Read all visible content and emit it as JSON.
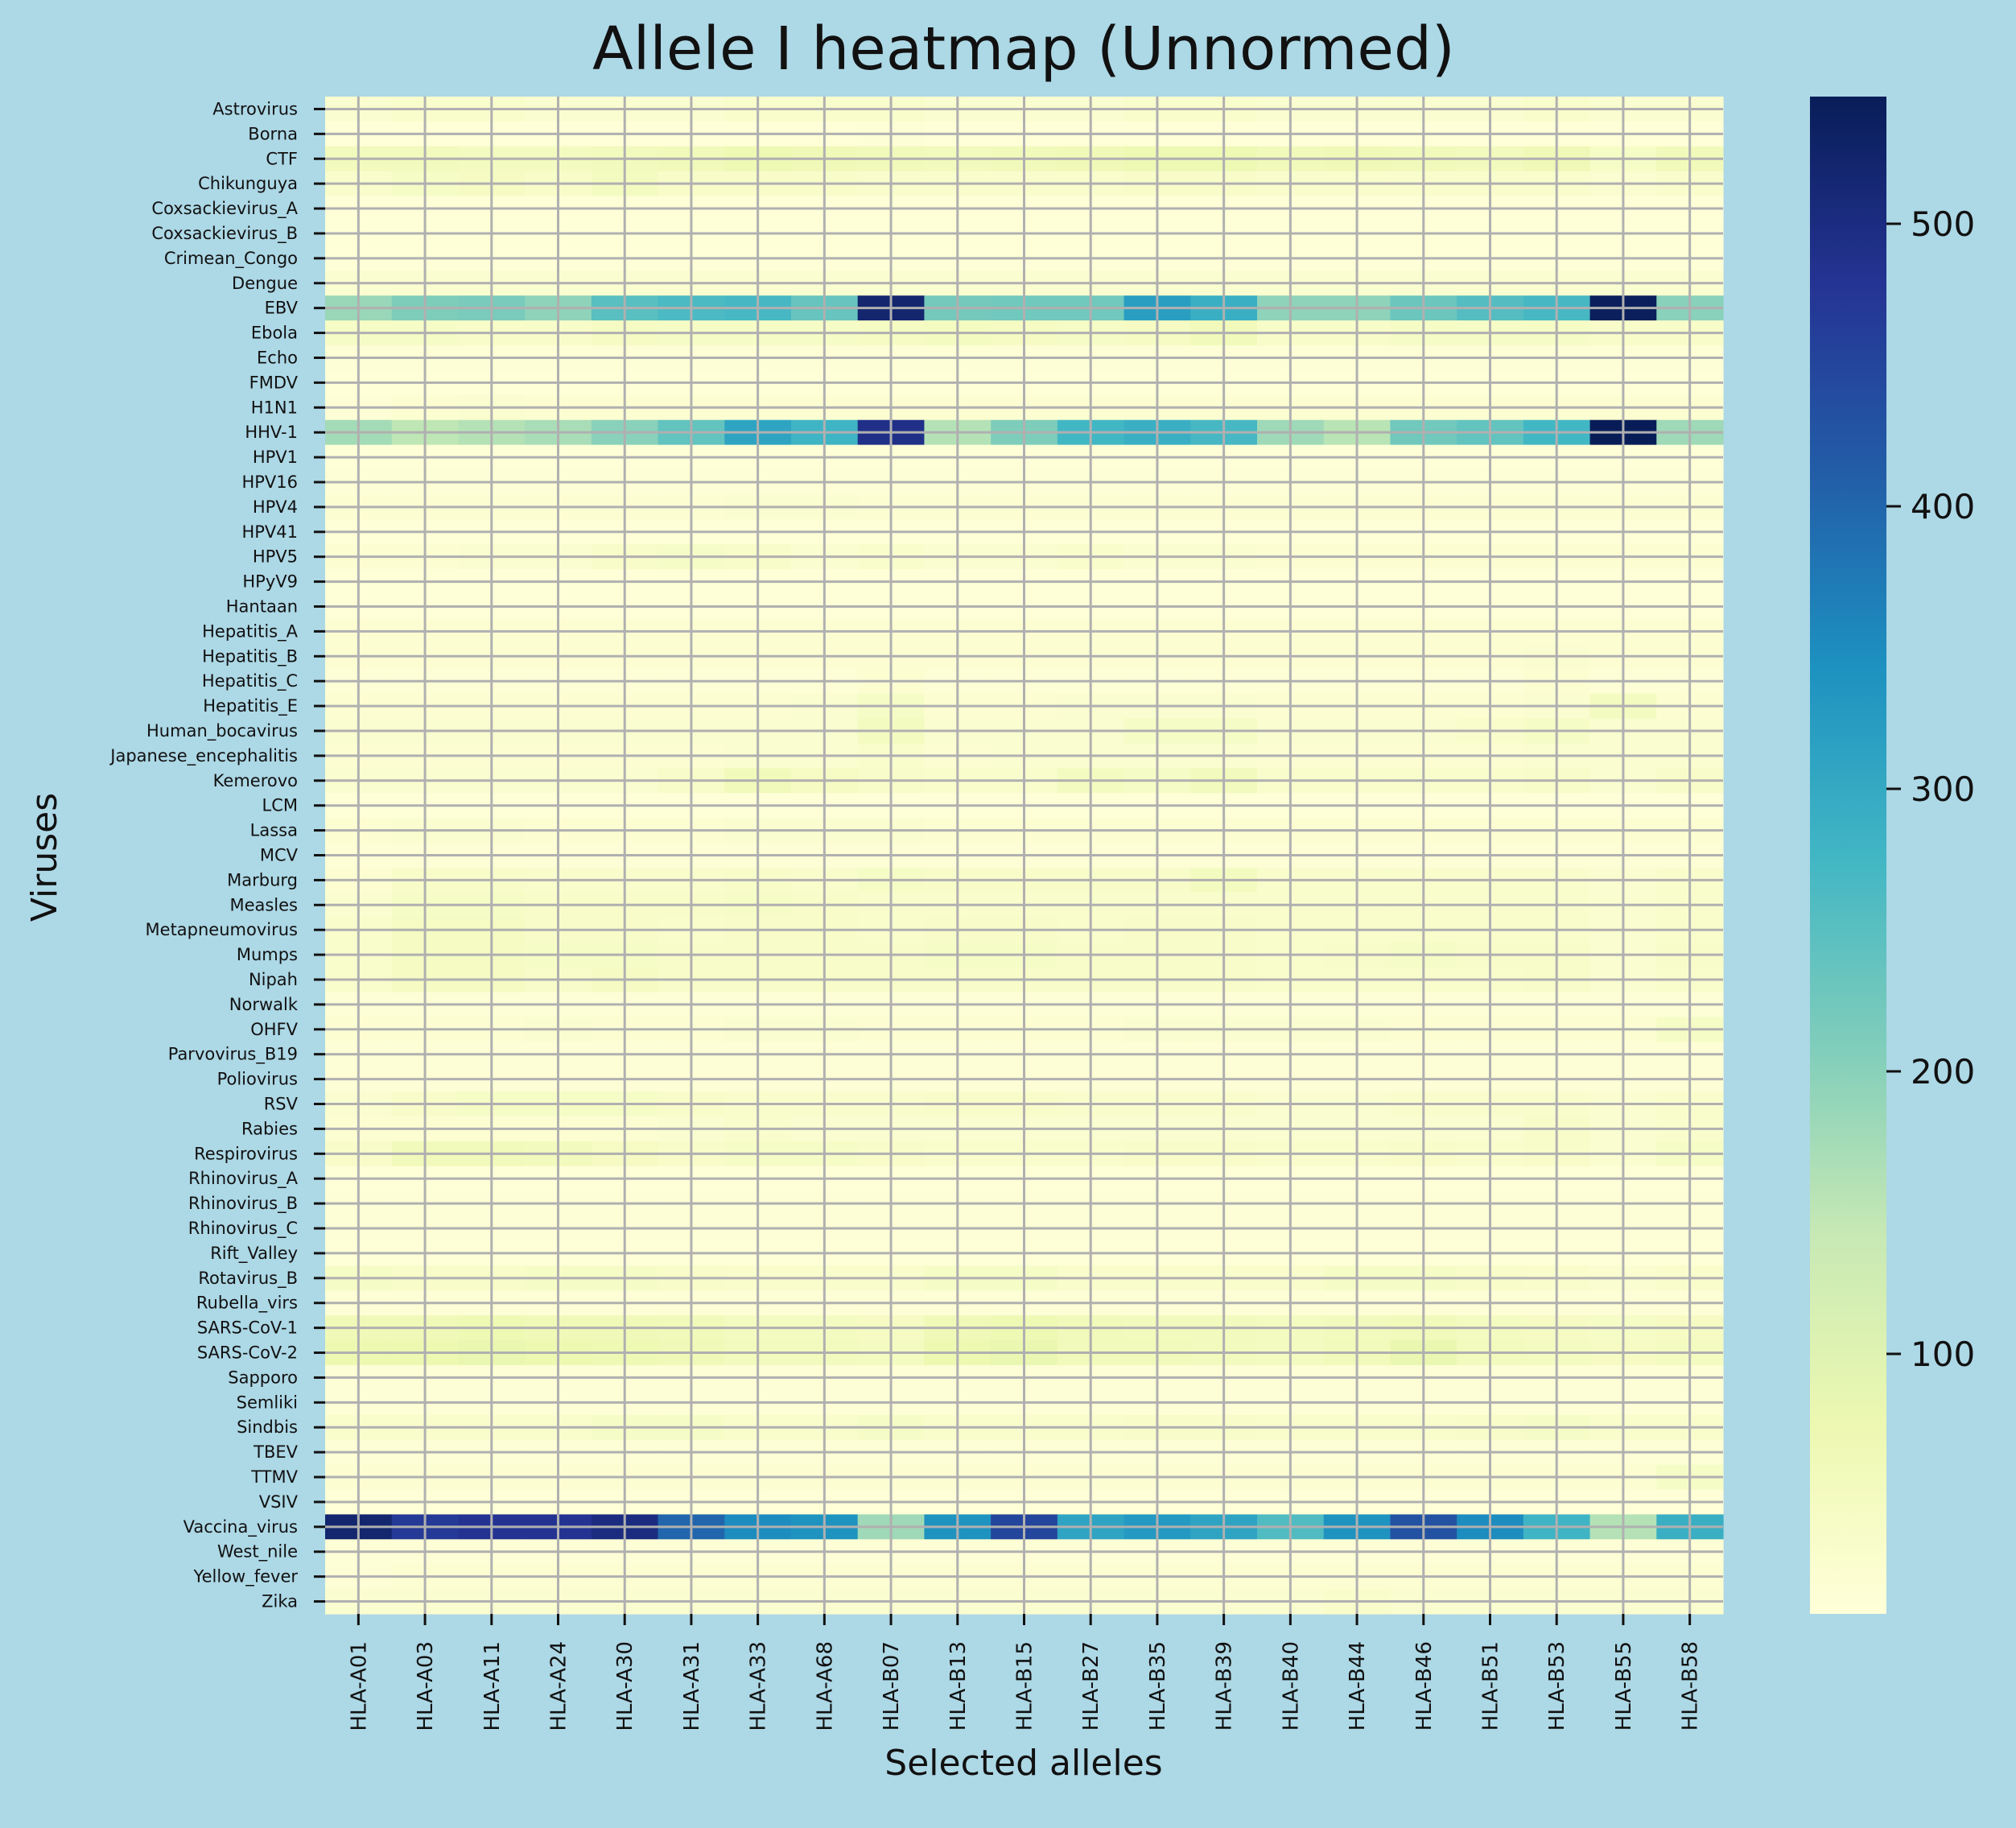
{
  "chart_data": {
    "type": "heatmap",
    "title": "Allele I heatmap (Unnormed)",
    "xlabel": "Selected alleles",
    "ylabel": "Viruses",
    "x_categories": [
      "HLA-A01",
      "HLA-A03",
      "HLA-A11",
      "HLA-A24",
      "HLA-A30",
      "HLA-A31",
      "HLA-A33",
      "HLA-A68",
      "HLA-B07",
      "HLA-B13",
      "HLA-B15",
      "HLA-B27",
      "HLA-B35",
      "HLA-B39",
      "HLA-B40",
      "HLA-B44",
      "HLA-B46",
      "HLA-B51",
      "HLA-B53",
      "HLA-B55",
      "HLA-B58"
    ],
    "y_categories": [
      "Astrovirus",
      "Borna",
      "CTF",
      "Chikunguya",
      "Coxsackievirus_A",
      "Coxsackievirus_B",
      "Crimean_Congo",
      "Dengue",
      "EBV",
      "Ebola",
      "Echo",
      "FMDV",
      "H1N1",
      "HHV-1",
      "HPV1",
      "HPV16",
      "HPV4",
      "HPV41",
      "HPV5",
      "HPyV9",
      "Hantaan",
      "Hepatitis_A",
      "Hepatitis_B",
      "Hepatitis_C",
      "Hepatitis_E",
      "Human_bocavirus",
      "Japanese_encephalitis",
      "Kemerovo",
      "LCM",
      "Lassa",
      "MCV",
      "Marburg",
      "Measles",
      "Metapneumovirus",
      "Mumps",
      "Nipah",
      "Norwalk",
      "OHFV",
      "Parvovirus_B19",
      "Poliovirus",
      "RSV",
      "Rabies",
      "Respirovirus",
      "Rhinovirus_A",
      "Rhinovirus_B",
      "Rhinovirus_C",
      "Rift_Valley",
      "Rotavirus_B",
      "Rubella_virs",
      "SARS-CoV-1",
      "SARS-CoV-2",
      "Sapporo",
      "Semliki",
      "Sindbis",
      "TBEV",
      "TTMV",
      "VSIV",
      "Vaccina_virus",
      "West_nile",
      "Yellow_fever",
      "Zika"
    ],
    "values": [
      [
        25,
        30,
        30,
        25,
        25,
        25,
        30,
        30,
        30,
        25,
        25,
        25,
        30,
        30,
        25,
        25,
        25,
        25,
        30,
        25,
        25
      ],
      [
        12,
        12,
        12,
        12,
        12,
        12,
        12,
        12,
        15,
        12,
        12,
        12,
        12,
        12,
        12,
        12,
        12,
        12,
        12,
        12,
        12
      ],
      [
        55,
        55,
        50,
        50,
        55,
        60,
        70,
        65,
        60,
        55,
        60,
        65,
        70,
        70,
        60,
        65,
        60,
        55,
        65,
        40,
        60
      ],
      [
        30,
        40,
        45,
        35,
        50,
        35,
        35,
        35,
        30,
        30,
        30,
        30,
        35,
        35,
        30,
        30,
        30,
        30,
        30,
        25,
        30
      ],
      [
        12,
        12,
        12,
        12,
        12,
        12,
        12,
        12,
        12,
        12,
        12,
        12,
        12,
        12,
        12,
        12,
        12,
        12,
        12,
        12,
        12
      ],
      [
        12,
        12,
        12,
        12,
        12,
        12,
        12,
        12,
        12,
        12,
        12,
        12,
        12,
        12,
        12,
        12,
        12,
        12,
        12,
        12,
        12
      ],
      [
        12,
        12,
        12,
        12,
        12,
        12,
        12,
        12,
        12,
        12,
        12,
        12,
        12,
        12,
        12,
        12,
        12,
        12,
        12,
        12,
        12
      ],
      [
        25,
        25,
        25,
        25,
        25,
        25,
        25,
        25,
        25,
        25,
        25,
        25,
        25,
        25,
        25,
        25,
        25,
        25,
        25,
        25,
        25
      ],
      [
        185,
        210,
        215,
        195,
        250,
        265,
        270,
        235,
        520,
        220,
        225,
        225,
        320,
        290,
        195,
        195,
        230,
        255,
        270,
        540,
        200
      ],
      [
        40,
        40,
        35,
        35,
        45,
        40,
        40,
        40,
        45,
        50,
        45,
        40,
        45,
        60,
        35,
        35,
        40,
        40,
        40,
        35,
        35
      ],
      [
        15,
        15,
        15,
        15,
        15,
        15,
        15,
        15,
        15,
        15,
        15,
        15,
        15,
        15,
        15,
        15,
        15,
        15,
        15,
        15,
        15
      ],
      [
        12,
        12,
        12,
        12,
        12,
        12,
        12,
        12,
        12,
        12,
        12,
        12,
        12,
        12,
        12,
        12,
        12,
        12,
        12,
        12,
        12
      ],
      [
        15,
        20,
        25,
        20,
        20,
        20,
        20,
        20,
        20,
        20,
        20,
        20,
        20,
        20,
        20,
        20,
        20,
        20,
        20,
        20,
        20
      ],
      [
        175,
        150,
        160,
        170,
        200,
        240,
        310,
        280,
        490,
        160,
        210,
        275,
        290,
        270,
        180,
        155,
        225,
        240,
        275,
        545,
        180
      ],
      [
        12,
        12,
        12,
        12,
        12,
        12,
        12,
        12,
        12,
        12,
        12,
        12,
        12,
        12,
        12,
        12,
        12,
        12,
        12,
        12,
        12
      ],
      [
        15,
        15,
        15,
        15,
        15,
        15,
        15,
        15,
        15,
        15,
        15,
        15,
        15,
        15,
        15,
        15,
        15,
        15,
        15,
        15,
        15
      ],
      [
        20,
        20,
        20,
        20,
        20,
        20,
        25,
        25,
        20,
        20,
        20,
        20,
        20,
        20,
        20,
        20,
        20,
        20,
        20,
        20,
        20
      ],
      [
        12,
        12,
        12,
        12,
        12,
        12,
        12,
        12,
        12,
        12,
        12,
        12,
        12,
        12,
        12,
        12,
        12,
        12,
        12,
        12,
        12
      ],
      [
        20,
        20,
        25,
        25,
        35,
        40,
        35,
        25,
        30,
        25,
        25,
        30,
        25,
        25,
        20,
        20,
        20,
        20,
        20,
        20,
        20
      ],
      [
        12,
        12,
        12,
        12,
        12,
        12,
        12,
        12,
        12,
        12,
        12,
        12,
        12,
        12,
        12,
        12,
        12,
        12,
        12,
        12,
        12
      ],
      [
        12,
        12,
        12,
        12,
        12,
        12,
        12,
        12,
        12,
        12,
        12,
        12,
        12,
        12,
        12,
        12,
        12,
        12,
        12,
        12,
        12
      ],
      [
        20,
        20,
        20,
        20,
        20,
        20,
        20,
        20,
        20,
        20,
        20,
        20,
        20,
        20,
        20,
        20,
        20,
        20,
        20,
        20,
        20
      ],
      [
        20,
        20,
        20,
        20,
        20,
        20,
        20,
        20,
        20,
        20,
        20,
        20,
        20,
        20,
        20,
        20,
        20,
        20,
        25,
        20,
        20
      ],
      [
        15,
        15,
        15,
        15,
        15,
        15,
        15,
        15,
        20,
        15,
        15,
        15,
        15,
        15,
        15,
        15,
        15,
        15,
        20,
        15,
        15
      ],
      [
        20,
        20,
        20,
        20,
        20,
        20,
        20,
        25,
        40,
        20,
        20,
        25,
        25,
        25,
        20,
        20,
        20,
        20,
        25,
        50,
        20
      ],
      [
        25,
        25,
        25,
        25,
        25,
        25,
        25,
        25,
        50,
        25,
        25,
        25,
        40,
        40,
        25,
        25,
        25,
        30,
        40,
        25,
        25
      ],
      [
        20,
        20,
        20,
        20,
        20,
        20,
        25,
        25,
        30,
        20,
        25,
        25,
        25,
        25,
        20,
        20,
        20,
        20,
        25,
        25,
        25
      ],
      [
        25,
        25,
        25,
        25,
        25,
        35,
        60,
        45,
        35,
        30,
        30,
        50,
        40,
        55,
        30,
        30,
        30,
        30,
        35,
        25,
        35
      ],
      [
        12,
        12,
        12,
        12,
        12,
        12,
        12,
        12,
        12,
        12,
        12,
        12,
        12,
        12,
        12,
        12,
        12,
        12,
        12,
        12,
        12
      ],
      [
        20,
        25,
        25,
        20,
        20,
        20,
        25,
        25,
        25,
        20,
        20,
        20,
        20,
        20,
        20,
        20,
        20,
        20,
        20,
        20,
        20
      ],
      [
        15,
        15,
        15,
        15,
        15,
        15,
        15,
        15,
        15,
        15,
        15,
        15,
        15,
        15,
        15,
        15,
        15,
        15,
        15,
        15,
        15
      ],
      [
        20,
        35,
        35,
        30,
        30,
        30,
        35,
        30,
        40,
        35,
        35,
        35,
        35,
        50,
        30,
        30,
        30,
        30,
        30,
        25,
        30
      ],
      [
        25,
        40,
        40,
        35,
        35,
        35,
        40,
        35,
        30,
        30,
        30,
        30,
        30,
        30,
        30,
        30,
        30,
        30,
        30,
        25,
        30
      ],
      [
        30,
        45,
        45,
        35,
        35,
        30,
        35,
        35,
        30,
        35,
        35,
        30,
        35,
        35,
        30,
        30,
        30,
        30,
        30,
        25,
        30
      ],
      [
        30,
        45,
        45,
        40,
        40,
        35,
        35,
        35,
        35,
        40,
        40,
        35,
        35,
        35,
        30,
        35,
        40,
        35,
        35,
        25,
        35
      ],
      [
        30,
        45,
        45,
        35,
        45,
        35,
        35,
        35,
        35,
        35,
        35,
        35,
        35,
        35,
        30,
        30,
        30,
        30,
        35,
        25,
        30
      ],
      [
        15,
        15,
        15,
        15,
        15,
        15,
        15,
        15,
        15,
        15,
        15,
        15,
        15,
        15,
        15,
        15,
        15,
        15,
        15,
        15,
        15
      ],
      [
        20,
        20,
        20,
        25,
        20,
        20,
        25,
        25,
        20,
        20,
        20,
        20,
        25,
        25,
        25,
        25,
        20,
        20,
        20,
        20,
        40
      ],
      [
        15,
        15,
        15,
        15,
        15,
        15,
        15,
        15,
        15,
        15,
        15,
        15,
        15,
        15,
        15,
        15,
        15,
        15,
        15,
        15,
        15
      ],
      [
        15,
        15,
        15,
        15,
        15,
        15,
        15,
        15,
        15,
        15,
        15,
        15,
        15,
        15,
        15,
        15,
        15,
        15,
        15,
        15,
        15
      ],
      [
        25,
        35,
        40,
        40,
        40,
        35,
        30,
        30,
        30,
        35,
        35,
        30,
        30,
        30,
        25,
        25,
        30,
        30,
        30,
        25,
        30
      ],
      [
        20,
        20,
        20,
        20,
        20,
        25,
        30,
        25,
        25,
        25,
        25,
        25,
        25,
        25,
        25,
        25,
        25,
        25,
        35,
        25,
        30
      ],
      [
        35,
        60,
        60,
        55,
        45,
        35,
        40,
        40,
        35,
        30,
        30,
        30,
        35,
        35,
        30,
        30,
        35,
        30,
        35,
        25,
        40
      ],
      [
        12,
        12,
        12,
        12,
        12,
        12,
        12,
        12,
        12,
        12,
        12,
        12,
        12,
        12,
        12,
        12,
        12,
        12,
        12,
        12,
        12
      ],
      [
        15,
        15,
        15,
        15,
        15,
        15,
        15,
        15,
        15,
        15,
        15,
        15,
        15,
        15,
        15,
        15,
        15,
        15,
        15,
        15,
        15
      ],
      [
        15,
        15,
        15,
        15,
        15,
        15,
        15,
        15,
        15,
        15,
        15,
        15,
        15,
        15,
        15,
        15,
        15,
        15,
        15,
        15,
        15
      ],
      [
        12,
        12,
        12,
        12,
        12,
        12,
        12,
        12,
        12,
        12,
        12,
        12,
        12,
        12,
        12,
        12,
        12,
        12,
        12,
        12,
        12
      ],
      [
        40,
        35,
        35,
        40,
        40,
        35,
        30,
        30,
        30,
        40,
        40,
        30,
        30,
        30,
        30,
        40,
        40,
        35,
        30,
        25,
        30
      ],
      [
        15,
        15,
        15,
        15,
        15,
        15,
        15,
        15,
        15,
        15,
        15,
        15,
        15,
        15,
        15,
        15,
        15,
        15,
        15,
        15,
        15
      ],
      [
        65,
        65,
        70,
        65,
        65,
        60,
        50,
        50,
        45,
        65,
        70,
        60,
        55,
        55,
        50,
        55,
        60,
        50,
        45,
        40,
        45
      ],
      [
        75,
        75,
        80,
        75,
        70,
        65,
        55,
        55,
        50,
        75,
        80,
        60,
        60,
        55,
        50,
        60,
        80,
        55,
        50,
        45,
        50
      ],
      [
        15,
        15,
        15,
        15,
        15,
        15,
        15,
        15,
        15,
        15,
        15,
        15,
        15,
        15,
        15,
        15,
        15,
        15,
        15,
        15,
        15
      ],
      [
        15,
        15,
        15,
        15,
        15,
        15,
        15,
        15,
        15,
        15,
        15,
        15,
        15,
        15,
        15,
        15,
        15,
        15,
        15,
        15,
        15
      ],
      [
        30,
        30,
        30,
        30,
        40,
        40,
        30,
        30,
        40,
        30,
        30,
        30,
        35,
        35,
        30,
        30,
        30,
        35,
        40,
        30,
        30
      ],
      [
        15,
        15,
        15,
        15,
        15,
        15,
        15,
        15,
        15,
        15,
        15,
        15,
        15,
        15,
        15,
        15,
        15,
        15,
        15,
        15,
        15
      ],
      [
        20,
        20,
        20,
        20,
        20,
        20,
        20,
        20,
        20,
        20,
        20,
        20,
        20,
        20,
        20,
        20,
        20,
        20,
        20,
        20,
        40
      ],
      [
        12,
        12,
        12,
        12,
        12,
        12,
        12,
        12,
        12,
        12,
        12,
        12,
        12,
        12,
        12,
        12,
        12,
        12,
        12,
        12,
        12
      ],
      [
        520,
        470,
        480,
        480,
        500,
        400,
        350,
        340,
        180,
        340,
        450,
        310,
        330,
        310,
        260,
        340,
        430,
        350,
        280,
        160,
        290
      ],
      [
        15,
        15,
        15,
        15,
        15,
        15,
        15,
        15,
        15,
        15,
        15,
        15,
        15,
        15,
        15,
        15,
        15,
        15,
        15,
        15,
        15
      ],
      [
        15,
        20,
        20,
        20,
        20,
        20,
        20,
        20,
        20,
        20,
        20,
        20,
        20,
        20,
        20,
        20,
        20,
        20,
        20,
        20,
        20
      ],
      [
        25,
        25,
        25,
        25,
        25,
        25,
        25,
        25,
        25,
        25,
        25,
        25,
        25,
        25,
        25,
        30,
        25,
        25,
        25,
        25,
        25
      ]
    ],
    "colormap": "YlGnBu",
    "colorbar_range": [
      8,
      545
    ],
    "colorbar_ticks": [
      100,
      200,
      300,
      400,
      500
    ],
    "grid": true,
    "grid_color": "#b0b0b0",
    "background_color": "#add8e6"
  }
}
